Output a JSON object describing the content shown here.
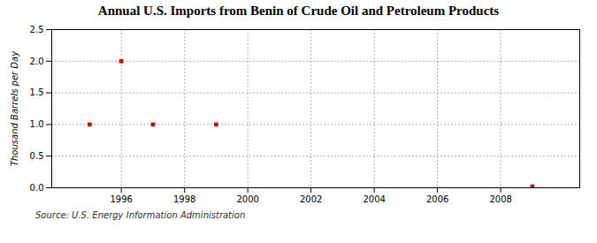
{
  "chart_data": {
    "type": "scatter",
    "title": "Annual U.S. Imports from Benin of Crude Oil and Petroleum Products",
    "ylabel": "Thousand Barrels per Day",
    "annotation": "Source: U.S. Energy Information Administration",
    "x": [
      1995,
      1996,
      1997,
      1999,
      2009
    ],
    "values": [
      1.0,
      2.0,
      1.0,
      1.0,
      0.02
    ],
    "color": "#cc0000",
    "marker": "square",
    "xlim": [
      1993.8,
      2010.5
    ],
    "xticks": [
      1996,
      1998,
      2000,
      2002,
      2004,
      2006,
      2008
    ],
    "ylim": [
      0.0,
      2.5
    ],
    "yticks": [
      {
        "value": 0,
        "label": "0.0"
      },
      0.5,
      {
        "value": 1,
        "label": "1.0"
      },
      1.5,
      {
        "value": 2,
        "label": "2.0"
      },
      2.5
    ],
    "grid": true
  }
}
